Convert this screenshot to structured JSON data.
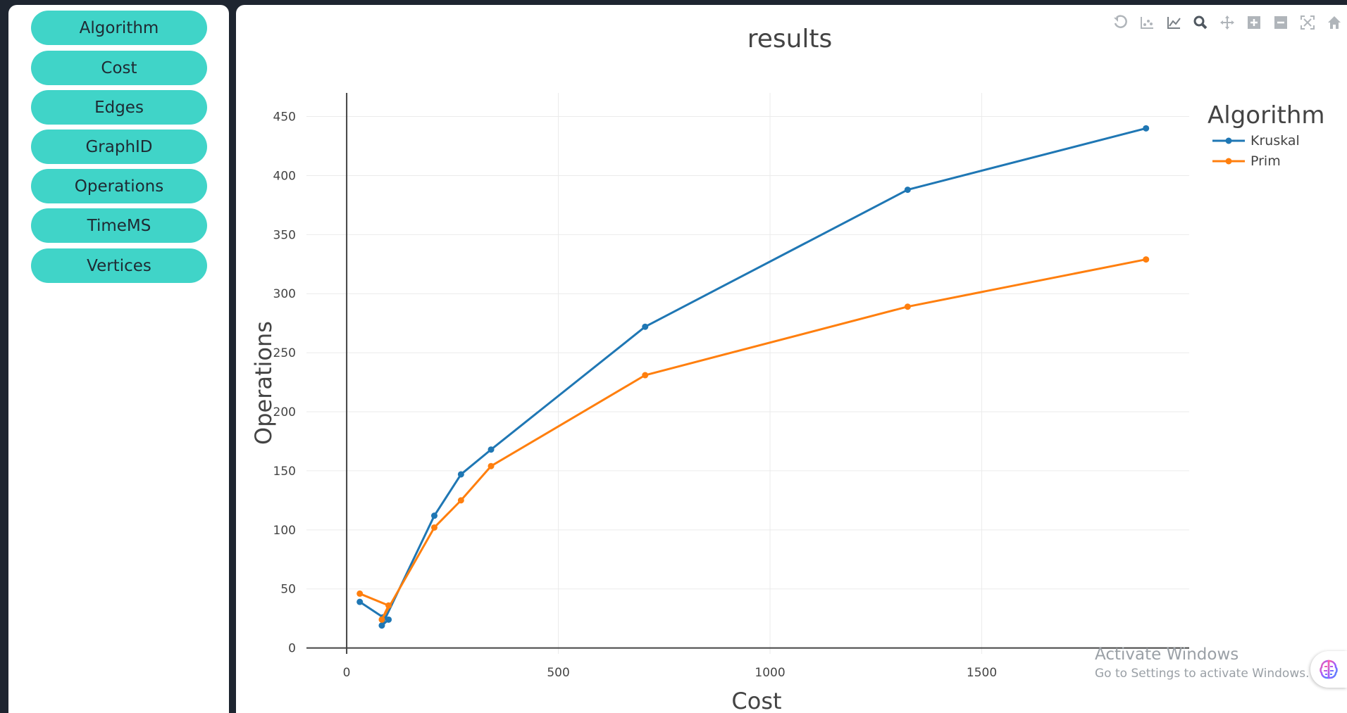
{
  "sidebar": {
    "buttons": [
      "Algorithm",
      "Cost",
      "Edges",
      "GraphID",
      "Operations",
      "TimeMS",
      "Vertices"
    ]
  },
  "modebar": {
    "icons": [
      "undo-icon",
      "scatter-icon",
      "line-chart-icon",
      "zoom-icon",
      "pan-icon",
      "zoom-in-icon",
      "zoom-out-icon",
      "autoscale-icon",
      "home-icon"
    ]
  },
  "watermark": {
    "title": "Activate Windows",
    "subtitle": "Go to Settings to activate Windows."
  },
  "chart_data": {
    "type": "line",
    "title": "results",
    "xlabel": "Cost",
    "ylabel": "Operations",
    "xlim": [
      -95,
      1990
    ],
    "ylim": [
      -5,
      470
    ],
    "x_ticks": [
      0,
      500,
      1000,
      1500
    ],
    "y_ticks": [
      0,
      50,
      100,
      150,
      200,
      250,
      300,
      350,
      400,
      450
    ],
    "grid": true,
    "legend_title": "Algorithm",
    "legend_position": "top-right",
    "series": [
      {
        "name": "Kruskal",
        "color": "#1f77b4",
        "x": [
          31,
          86,
          99,
          83,
          207,
          270,
          341,
          705,
          1325,
          1888
        ],
        "y": [
          39,
          26,
          24,
          19,
          112,
          147,
          168,
          272,
          388,
          440
        ]
      },
      {
        "name": "Prim",
        "color": "#ff7f0e",
        "x": [
          31,
          99,
          83,
          207,
          270,
          341,
          705,
          1325,
          1888
        ],
        "y": [
          46,
          36,
          24,
          102,
          125,
          154,
          231,
          289,
          329
        ]
      }
    ]
  }
}
